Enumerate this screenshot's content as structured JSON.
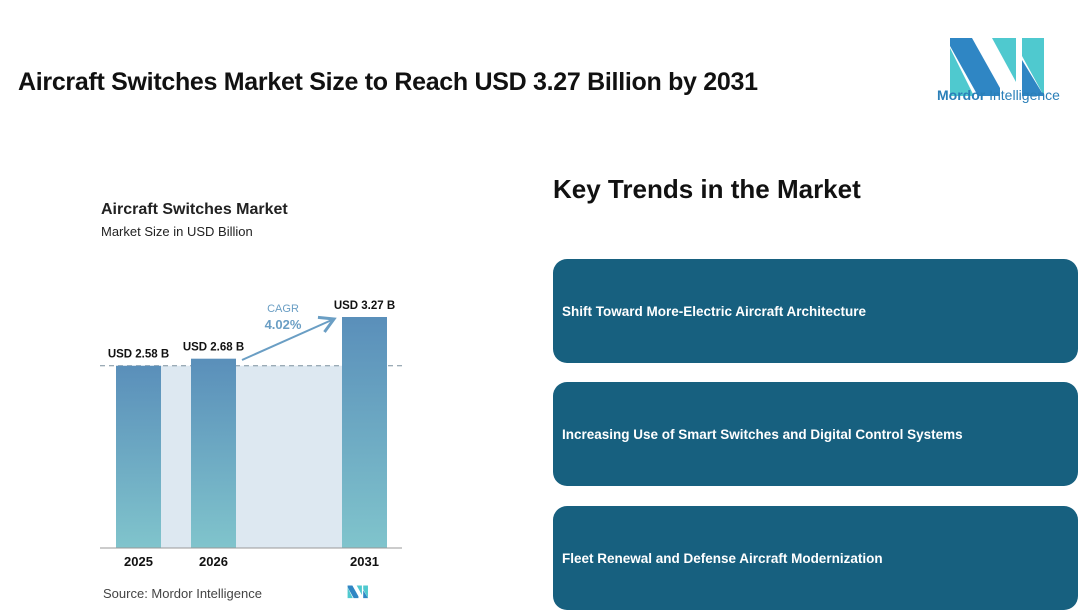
{
  "title": "Aircraft Switches Market Size to Reach USD 3.27 Billion by 2031",
  "logo": {
    "brand": "Mordor",
    "suffix": "Intelligence"
  },
  "chart_data": {
    "type": "bar",
    "title": "Aircraft Switches Market",
    "subtitle": "Market Size in USD Billion",
    "categories": [
      "2025",
      "2026",
      "2031"
    ],
    "values": [
      2.58,
      2.68,
      3.27
    ],
    "labels": [
      "USD 2.58 B",
      "USD 2.68 B",
      "USD 3.27 B"
    ],
    "cagr_label": "CAGR",
    "cagr_value": "4.02%",
    "source": "Source:  Mordor Intelligence",
    "ylim": [
      0,
      3.27
    ]
  },
  "trends": {
    "heading": "Key Trends in the Market",
    "items": [
      "Shift Toward More-Electric Aircraft Architecture",
      "Increasing Use of Smart Switches and Digital Control Systems",
      "Fleet Renewal and Defense Aircraft Modernization"
    ]
  },
  "colors": {
    "card": "#17607f",
    "bar_top": "#5a8fba",
    "bar_bottom": "#7fc3cc",
    "band": "#dde8f1",
    "accent": "#6a9ec4"
  }
}
